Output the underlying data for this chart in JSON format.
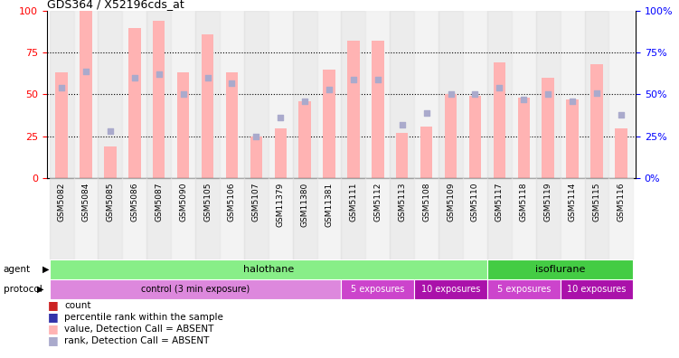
{
  "title": "GDS364 / X52196cds_at",
  "samples": [
    "GSM5082",
    "GSM5084",
    "GSM5085",
    "GSM5086",
    "GSM5087",
    "GSM5090",
    "GSM5105",
    "GSM5106",
    "GSM5107",
    "GSM11379",
    "GSM11380",
    "GSM11381",
    "GSM5111",
    "GSM5112",
    "GSM5113",
    "GSM5108",
    "GSM5109",
    "GSM5110",
    "GSM5117",
    "GSM5118",
    "GSM5119",
    "GSM5114",
    "GSM5115",
    "GSM5116"
  ],
  "bar_values": [
    63,
    100,
    19,
    90,
    94,
    63,
    86,
    63,
    25,
    30,
    46,
    65,
    82,
    82,
    27,
    31,
    50,
    49,
    69,
    48,
    60,
    47,
    68,
    30
  ],
  "rank_values": [
    54,
    64,
    28,
    60,
    62,
    50,
    60,
    57,
    25,
    36,
    46,
    53,
    59,
    59,
    32,
    39,
    50,
    50,
    54,
    47,
    50,
    46,
    51,
    38
  ],
  "bar_color_absent": "#FFB3B3",
  "rank_color_absent": "#AAAACC",
  "ylim": [
    0,
    100
  ],
  "agent_groups": [
    {
      "label": "halothane",
      "start": 0,
      "end": 18,
      "color": "#88EE88"
    },
    {
      "label": "isoflurane",
      "start": 18,
      "end": 24,
      "color": "#44CC44"
    }
  ],
  "protocol_groups": [
    {
      "label": "control (3 min exposure)",
      "start": 0,
      "end": 12,
      "color": "#DD88DD"
    },
    {
      "label": "5 exposures",
      "start": 12,
      "end": 15,
      "color": "#CC44CC"
    },
    {
      "label": "10 exposures",
      "start": 15,
      "end": 18,
      "color": "#AA11AA"
    },
    {
      "label": "5 exposures",
      "start": 18,
      "end": 21,
      "color": "#CC44CC"
    },
    {
      "label": "10 exposures",
      "start": 21,
      "end": 24,
      "color": "#AA11AA"
    }
  ],
  "legend_items": [
    {
      "label": "count",
      "color": "#CC2222"
    },
    {
      "label": "percentile rank within the sample",
      "color": "#3333AA"
    },
    {
      "label": "value, Detection Call = ABSENT",
      "color": "#FFB3B3"
    },
    {
      "label": "rank, Detection Call = ABSENT",
      "color": "#AAAACC"
    }
  ],
  "grid_lines": [
    25,
    50,
    75
  ],
  "left_ticks": [
    0,
    25,
    50,
    75,
    100
  ],
  "right_ticks": [
    0,
    25,
    50,
    75,
    100
  ]
}
